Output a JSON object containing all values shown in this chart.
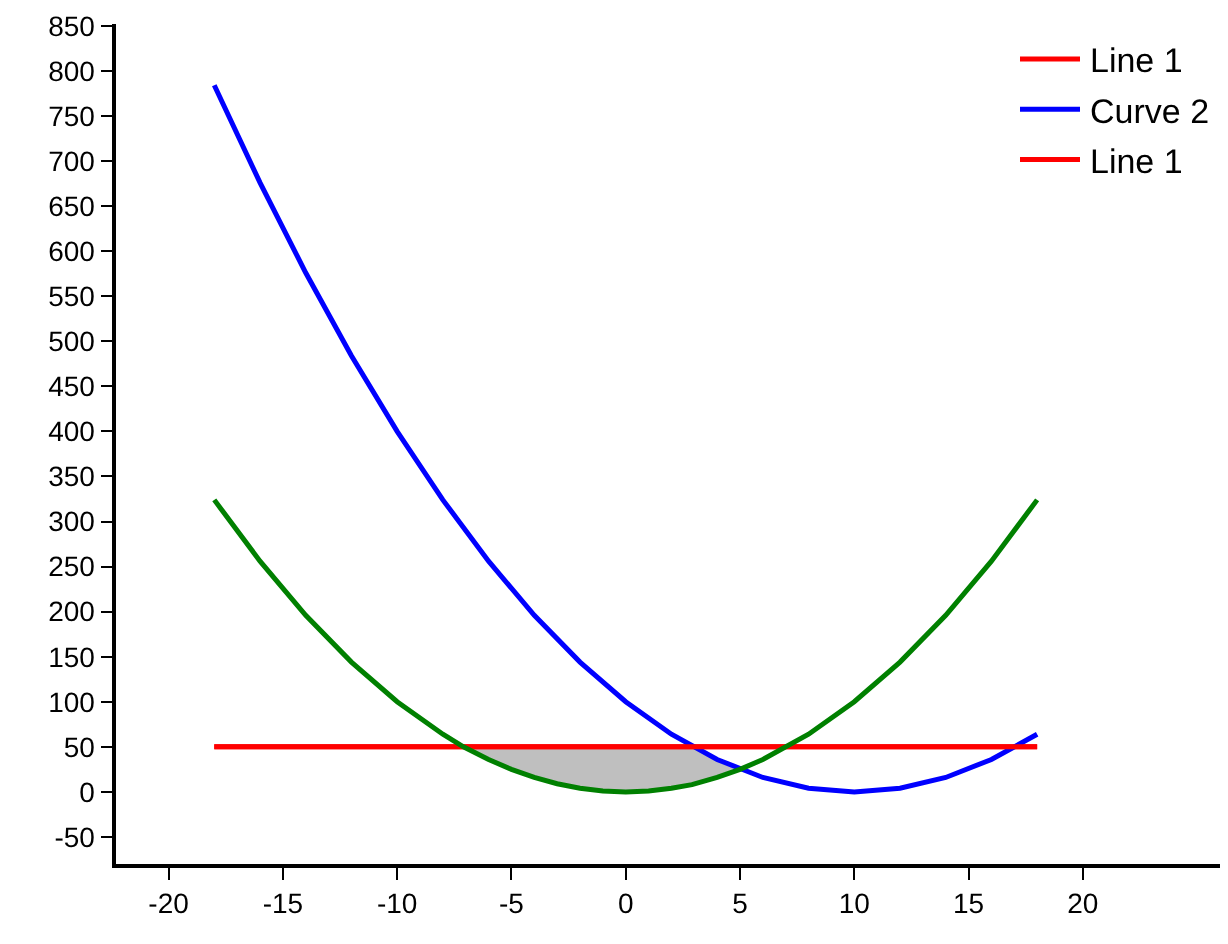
{
  "chart_data": {
    "type": "line",
    "series": [
      {
        "name": "Line 1",
        "color": "#ff0000",
        "x": [
          -18,
          18
        ],
        "values": [
          50,
          50
        ]
      },
      {
        "name": "Curve 2",
        "color": "#0000ff",
        "x": [
          -18,
          -16,
          -14,
          -12,
          -10,
          -8,
          -6,
          -4,
          -2,
          0,
          2,
          4,
          6,
          8,
          10,
          12,
          14,
          16,
          18
        ],
        "values": [
          784,
          676,
          576,
          484,
          400,
          324,
          256,
          196,
          144,
          100,
          64,
          36,
          16,
          4,
          0,
          4,
          16,
          36,
          64
        ]
      },
      {
        "name": "Line 1",
        "color": "#ff0000",
        "x": [
          -18,
          18
        ],
        "values": [
          50,
          50
        ]
      },
      {
        "color": "#008000",
        "x": [
          -18,
          -16,
          -14,
          -12,
          -10,
          -8,
          -7.1,
          -6,
          -5,
          -4,
          -3,
          -2,
          -1,
          0,
          1,
          2,
          2.9,
          4,
          5,
          6,
          8,
          10,
          12,
          14,
          16,
          18
        ],
        "values": [
          324,
          256,
          196,
          144,
          100,
          64,
          50,
          36,
          25,
          16,
          9,
          4,
          1,
          0,
          1,
          4,
          8,
          16,
          25,
          36,
          64,
          100,
          144,
          196,
          256,
          324
        ],
        "lower": [
          null,
          null,
          null,
          null,
          null,
          null,
          50,
          36,
          25,
          16,
          9,
          4,
          1,
          0,
          1,
          4,
          8,
          16,
          25,
          null,
          null,
          null,
          null,
          null,
          null,
          null
        ],
        "upper": [
          null,
          null,
          null,
          null,
          null,
          null,
          50,
          50,
          50,
          50,
          50,
          50,
          50,
          50,
          50,
          50,
          50,
          36,
          25,
          null,
          null,
          null,
          null,
          null,
          null,
          null
        ]
      }
    ],
    "xlim": [
      -22.3,
      26
    ],
    "xticks": [
      -20,
      -15,
      -10,
      -5,
      0,
      5,
      10,
      15,
      20
    ],
    "ylim": [
      -80,
      852
    ],
    "yticks": [
      -50,
      0,
      50,
      100,
      150,
      200,
      250,
      300,
      350,
      400,
      450,
      500,
      550,
      600,
      650,
      700,
      750,
      800,
      850
    ],
    "legend": "top right",
    "grid": false,
    "line_style": "solid",
    "marker": "none"
  }
}
